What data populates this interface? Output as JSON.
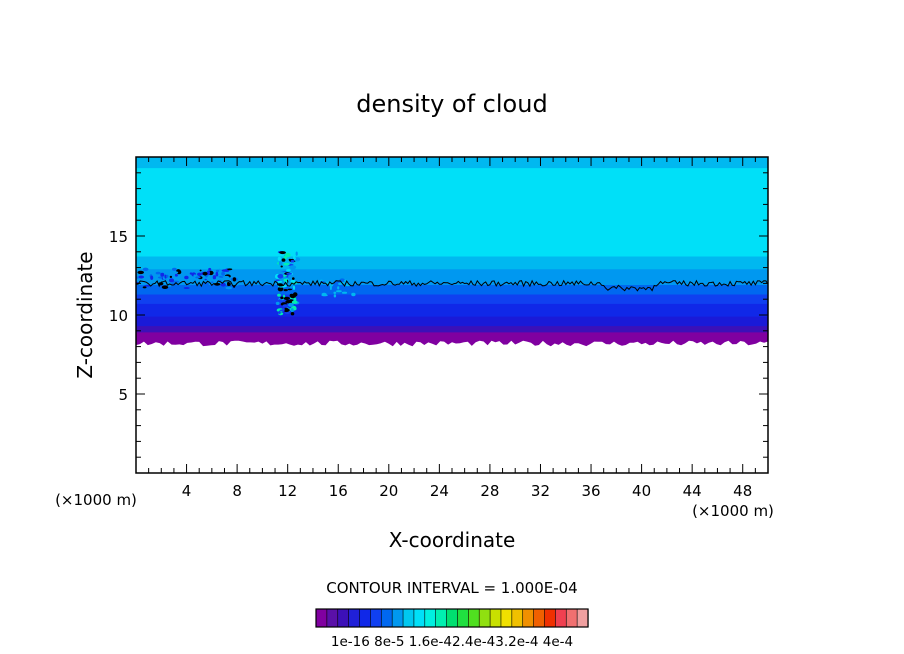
{
  "chart_data": {
    "type": "heatmap",
    "title": "density of cloud",
    "xlabel": "X-coordinate",
    "ylabel": "Z-coordinate",
    "x_unit_left": "(×1000 m)",
    "x_unit_right": "(×1000 m)",
    "xlim": [
      0,
      50
    ],
    "ylim": [
      0,
      20
    ],
    "x_ticks": [
      4,
      8,
      12,
      16,
      20,
      24,
      28,
      32,
      36,
      40,
      44,
      48
    ],
    "y_ticks": [
      5,
      10,
      15
    ],
    "contour_interval_label": "CONTOUR INTERVAL = 1.000E-04",
    "colorbar_labels": [
      "1e-16",
      "8e-5",
      "1.6e-4",
      "2.4e-4",
      "3.2e-4",
      "4e-4"
    ],
    "colorbar_label_text": "1e-16 8e-5 1.6e-42.4e-43.2e-4 4e-4",
    "colorbar_colors": [
      "#8000a0",
      "#5a10a8",
      "#3c10b8",
      "#2020d8",
      "#1028e8",
      "#1040f0",
      "#0068f0",
      "#0098f0",
      "#00c8f0",
      "#00e0f8",
      "#00f0e0",
      "#00f0b0",
      "#00e070",
      "#20e040",
      "#50e020",
      "#90e010",
      "#c8e000",
      "#f0e000",
      "#f0c000",
      "#f09000",
      "#f06000",
      "#f03000",
      "#f04050",
      "#f07070",
      "#f0a0a0"
    ],
    "layers": [
      {
        "z_bottom": 8.2,
        "z_top": 8.6,
        "color": "#8000a0"
      },
      {
        "z_bottom": 8.6,
        "z_top": 9.0,
        "color": "#3c10b8"
      },
      {
        "z_bottom": 9.0,
        "z_top": 9.6,
        "color": "#1a1ad8"
      },
      {
        "z_bottom": 9.6,
        "z_top": 10.4,
        "color": "#1028e8"
      },
      {
        "z_bottom": 10.4,
        "z_top": 11.0,
        "color": "#1040f0"
      },
      {
        "z_bottom": 11.0,
        "z_top": 11.6,
        "color": "#0068f0"
      },
      {
        "z_bottom": 11.6,
        "z_top": 12.6,
        "color": "#0098f0"
      },
      {
        "z_bottom": 12.6,
        "z_top": 13.4,
        "color": "#00b8f0"
      },
      {
        "z_bottom": 13.4,
        "z_top": 19.0,
        "color": "#00e0f8"
      },
      {
        "z_bottom": 19.0,
        "z_top": 20.0,
        "color": "#00b8f0"
      }
    ],
    "contour_line_z": 12.0,
    "grid": false,
    "legend": "bottom-center"
  }
}
